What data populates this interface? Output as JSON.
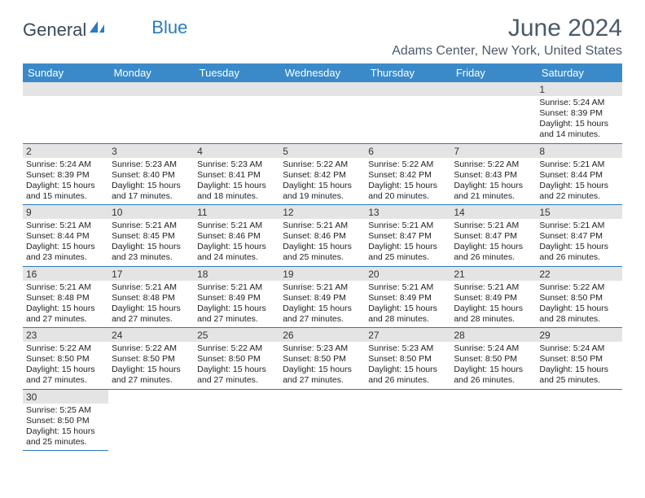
{
  "logo": {
    "part1": "General",
    "part2": "Blue"
  },
  "title": "June 2024",
  "location": "Adams Center, New York, United States",
  "colors": {
    "header_bg": "#3a8ac9",
    "header_text": "#ffffff",
    "daynum_bg": "#e4e4e4",
    "border": "#2a7bbf",
    "title_color": "#4a5a6a",
    "logo_blue": "#2a7bbf"
  },
  "day_headers": [
    "Sunday",
    "Monday",
    "Tuesday",
    "Wednesday",
    "Thursday",
    "Friday",
    "Saturday"
  ],
  "weeks": [
    [
      null,
      null,
      null,
      null,
      null,
      null,
      {
        "n": "1",
        "sunrise": "5:24 AM",
        "sunset": "8:39 PM",
        "dl1": "Daylight: 15 hours",
        "dl2": "and 14 minutes."
      }
    ],
    [
      {
        "n": "2",
        "sunrise": "5:24 AM",
        "sunset": "8:39 PM",
        "dl1": "Daylight: 15 hours",
        "dl2": "and 15 minutes."
      },
      {
        "n": "3",
        "sunrise": "5:23 AM",
        "sunset": "8:40 PM",
        "dl1": "Daylight: 15 hours",
        "dl2": "and 17 minutes."
      },
      {
        "n": "4",
        "sunrise": "5:23 AM",
        "sunset": "8:41 PM",
        "dl1": "Daylight: 15 hours",
        "dl2": "and 18 minutes."
      },
      {
        "n": "5",
        "sunrise": "5:22 AM",
        "sunset": "8:42 PM",
        "dl1": "Daylight: 15 hours",
        "dl2": "and 19 minutes."
      },
      {
        "n": "6",
        "sunrise": "5:22 AM",
        "sunset": "8:42 PM",
        "dl1": "Daylight: 15 hours",
        "dl2": "and 20 minutes."
      },
      {
        "n": "7",
        "sunrise": "5:22 AM",
        "sunset": "8:43 PM",
        "dl1": "Daylight: 15 hours",
        "dl2": "and 21 minutes."
      },
      {
        "n": "8",
        "sunrise": "5:21 AM",
        "sunset": "8:44 PM",
        "dl1": "Daylight: 15 hours",
        "dl2": "and 22 minutes."
      }
    ],
    [
      {
        "n": "9",
        "sunrise": "5:21 AM",
        "sunset": "8:44 PM",
        "dl1": "Daylight: 15 hours",
        "dl2": "and 23 minutes."
      },
      {
        "n": "10",
        "sunrise": "5:21 AM",
        "sunset": "8:45 PM",
        "dl1": "Daylight: 15 hours",
        "dl2": "and 23 minutes."
      },
      {
        "n": "11",
        "sunrise": "5:21 AM",
        "sunset": "8:46 PM",
        "dl1": "Daylight: 15 hours",
        "dl2": "and 24 minutes."
      },
      {
        "n": "12",
        "sunrise": "5:21 AM",
        "sunset": "8:46 PM",
        "dl1": "Daylight: 15 hours",
        "dl2": "and 25 minutes."
      },
      {
        "n": "13",
        "sunrise": "5:21 AM",
        "sunset": "8:47 PM",
        "dl1": "Daylight: 15 hours",
        "dl2": "and 25 minutes."
      },
      {
        "n": "14",
        "sunrise": "5:21 AM",
        "sunset": "8:47 PM",
        "dl1": "Daylight: 15 hours",
        "dl2": "and 26 minutes."
      },
      {
        "n": "15",
        "sunrise": "5:21 AM",
        "sunset": "8:47 PM",
        "dl1": "Daylight: 15 hours",
        "dl2": "and 26 minutes."
      }
    ],
    [
      {
        "n": "16",
        "sunrise": "5:21 AM",
        "sunset": "8:48 PM",
        "dl1": "Daylight: 15 hours",
        "dl2": "and 27 minutes."
      },
      {
        "n": "17",
        "sunrise": "5:21 AM",
        "sunset": "8:48 PM",
        "dl1": "Daylight: 15 hours",
        "dl2": "and 27 minutes."
      },
      {
        "n": "18",
        "sunrise": "5:21 AM",
        "sunset": "8:49 PM",
        "dl1": "Daylight: 15 hours",
        "dl2": "and 27 minutes."
      },
      {
        "n": "19",
        "sunrise": "5:21 AM",
        "sunset": "8:49 PM",
        "dl1": "Daylight: 15 hours",
        "dl2": "and 27 minutes."
      },
      {
        "n": "20",
        "sunrise": "5:21 AM",
        "sunset": "8:49 PM",
        "dl1": "Daylight: 15 hours",
        "dl2": "and 28 minutes."
      },
      {
        "n": "21",
        "sunrise": "5:21 AM",
        "sunset": "8:49 PM",
        "dl1": "Daylight: 15 hours",
        "dl2": "and 28 minutes."
      },
      {
        "n": "22",
        "sunrise": "5:22 AM",
        "sunset": "8:50 PM",
        "dl1": "Daylight: 15 hours",
        "dl2": "and 28 minutes."
      }
    ],
    [
      {
        "n": "23",
        "sunrise": "5:22 AM",
        "sunset": "8:50 PM",
        "dl1": "Daylight: 15 hours",
        "dl2": "and 27 minutes."
      },
      {
        "n": "24",
        "sunrise": "5:22 AM",
        "sunset": "8:50 PM",
        "dl1": "Daylight: 15 hours",
        "dl2": "and 27 minutes."
      },
      {
        "n": "25",
        "sunrise": "5:22 AM",
        "sunset": "8:50 PM",
        "dl1": "Daylight: 15 hours",
        "dl2": "and 27 minutes."
      },
      {
        "n": "26",
        "sunrise": "5:23 AM",
        "sunset": "8:50 PM",
        "dl1": "Daylight: 15 hours",
        "dl2": "and 27 minutes."
      },
      {
        "n": "27",
        "sunrise": "5:23 AM",
        "sunset": "8:50 PM",
        "dl1": "Daylight: 15 hours",
        "dl2": "and 26 minutes."
      },
      {
        "n": "28",
        "sunrise": "5:24 AM",
        "sunset": "8:50 PM",
        "dl1": "Daylight: 15 hours",
        "dl2": "and 26 minutes."
      },
      {
        "n": "29",
        "sunrise": "5:24 AM",
        "sunset": "8:50 PM",
        "dl1": "Daylight: 15 hours",
        "dl2": "and 25 minutes."
      }
    ],
    [
      {
        "n": "30",
        "sunrise": "5:25 AM",
        "sunset": "8:50 PM",
        "dl1": "Daylight: 15 hours",
        "dl2": "and 25 minutes."
      },
      null,
      null,
      null,
      null,
      null,
      null
    ]
  ],
  "labels": {
    "sunrise_prefix": "Sunrise: ",
    "sunset_prefix": "Sunset: "
  }
}
